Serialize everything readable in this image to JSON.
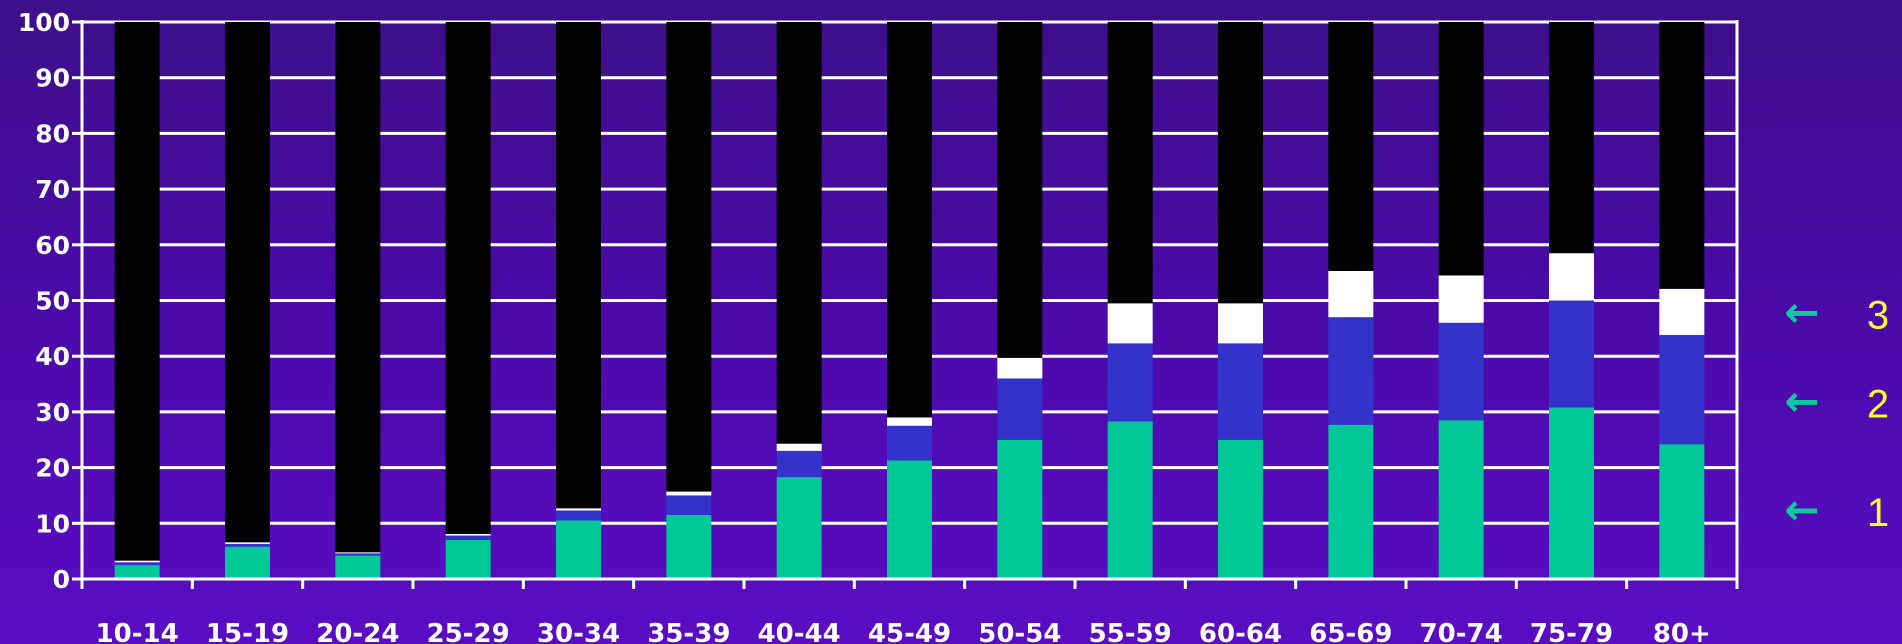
{
  "chart_data": {
    "type": "bar",
    "stacked": true,
    "categories": [
      "10-14",
      "15-19",
      "20-24",
      "25-29",
      "30-34",
      "35-39",
      "40-44",
      "45-49",
      "50-54",
      "55-59",
      "60-64",
      "65-69",
      "70-74",
      "75-79",
      "80+"
    ],
    "series": [
      {
        "color": "#00c896",
        "values": [
          2.5,
          5.8,
          4.2,
          7.0,
          10.5,
          11.5,
          18.3,
          21.3,
          25.0,
          28.3,
          25.0,
          27.7,
          28.5,
          30.8,
          24.2
        ]
      },
      {
        "color": "#3333cc",
        "values": [
          0.5,
          0.5,
          0.4,
          0.8,
          1.8,
          3.5,
          4.7,
          6.2,
          11.0,
          14.0,
          17.3,
          19.3,
          17.5,
          19.2,
          19.6
        ]
      },
      {
        "color": "#ffffff",
        "values": [
          0.3,
          0.3,
          0.2,
          0.3,
          0.4,
          0.7,
          1.3,
          1.5,
          3.7,
          7.2,
          7.2,
          8.3,
          8.5,
          8.5,
          8.3
        ]
      },
      {
        "color": "#000000",
        "values": [
          96.7,
          93.4,
          95.2,
          91.9,
          87.3,
          84.3,
          75.7,
          71.0,
          60.3,
          50.5,
          50.5,
          44.7,
          45.5,
          41.5,
          47.9
        ]
      }
    ],
    "ylim": [
      0,
      100
    ],
    "yticks": [
      0,
      10,
      20,
      30,
      40,
      50,
      60,
      70,
      80,
      90,
      100
    ],
    "grid": true,
    "annotations": [
      {
        "label": "3",
        "arrow": "←",
        "y": 47.5
      },
      {
        "label": "2",
        "arrow": "←",
        "y": 31.5
      },
      {
        "label": "1",
        "arrow": "←",
        "y": 12.0
      }
    ],
    "colors": {
      "grid": "#ffffff",
      "arrow": "#11c9a0",
      "annotation_text": "#ffff33"
    }
  }
}
